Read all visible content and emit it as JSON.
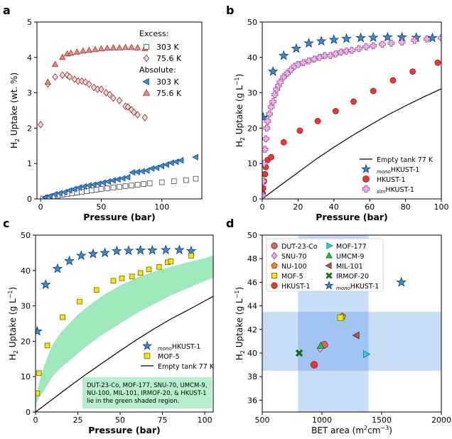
{
  "chart_data": [
    {
      "panel": "a",
      "type": "scatter",
      "xlabel": "Pressure (bar)",
      "ylabel": "H2 Uptake (wt. %)",
      "xlim": [
        -3,
        133
      ],
      "ylim": [
        0,
        5
      ],
      "xticks": [
        0,
        50,
        100
      ],
      "yticks": [
        0,
        1,
        2,
        3,
        4,
        5
      ],
      "legend": {
        "title_excess": "Excess:",
        "title_absolute": "Absolute:",
        "placement": "top-right"
      },
      "series": [
        {
          "name": "303 K",
          "group": "Excess",
          "marker": "square",
          "color": "#ffffff",
          "edge": "#444444",
          "x": [
            2,
            6,
            10,
            14,
            18,
            22,
            26,
            30,
            34,
            38,
            42,
            46,
            50,
            55,
            60,
            65,
            70,
            75,
            80,
            85,
            90,
            100,
            110,
            120,
            128
          ],
          "y": [
            0.01,
            0.04,
            0.07,
            0.09,
            0.12,
            0.14,
            0.16,
            0.18,
            0.2,
            0.22,
            0.24,
            0.26,
            0.28,
            0.3,
            0.32,
            0.34,
            0.36,
            0.38,
            0.4,
            0.42,
            0.44,
            0.47,
            0.5,
            0.53,
            0.57
          ]
        },
        {
          "name": "75.6 K",
          "group": "Excess",
          "marker": "diamond",
          "color": "#f6d6d4",
          "edge": "#7a3030",
          "x": [
            0,
            6,
            12,
            18,
            22,
            24,
            28,
            31,
            34,
            37,
            40,
            44,
            47,
            50,
            54,
            57,
            60,
            65,
            70,
            72,
            75,
            77,
            80,
            86
          ],
          "y": [
            2.1,
            3.25,
            3.45,
            3.5,
            3.5,
            3.45,
            3.38,
            3.33,
            3.33,
            3.3,
            3.24,
            3.15,
            3.1,
            3.1,
            3.0,
            2.95,
            2.85,
            2.78,
            2.62,
            2.6,
            2.52,
            2.45,
            2.38,
            2.3
          ]
        },
        {
          "name": "303 K",
          "group": "Absolute",
          "marker": "triangle-left",
          "color": "#3a8ad6",
          "edge": "#1f4e80",
          "x": [
            4,
            8,
            12,
            16,
            20,
            24,
            28,
            32,
            36,
            40,
            44,
            48,
            52,
            56,
            60,
            64,
            68,
            72,
            76,
            80,
            84,
            88,
            92,
            96,
            100,
            104,
            108,
            112,
            116,
            128
          ],
          "y": [
            0.04,
            0.08,
            0.13,
            0.16,
            0.19,
            0.24,
            0.28,
            0.32,
            0.35,
            0.38,
            0.4,
            0.43,
            0.46,
            0.49,
            0.52,
            0.55,
            0.58,
            0.61,
            0.75,
            0.76,
            0.78,
            0.8,
            0.86,
            0.88,
            0.93,
            0.97,
            1.02,
            1.05,
            1.09,
            1.18
          ]
        },
        {
          "name": "75.6 K",
          "group": "Absolute",
          "marker": "triangle-up",
          "color": "#f1857c",
          "edge": "#8c3a32",
          "x": [
            6,
            12,
            18,
            22,
            25,
            30,
            35,
            40,
            45,
            50,
            55,
            60,
            65,
            70,
            75,
            80,
            86
          ],
          "y": [
            3.3,
            3.8,
            4.0,
            4.1,
            4.12,
            4.15,
            4.18,
            4.2,
            4.22,
            4.24,
            4.26,
            4.27,
            4.27,
            4.28,
            4.28,
            4.27,
            4.25
          ]
        }
      ]
    },
    {
      "panel": "b",
      "type": "scatter",
      "xlabel": "Pressure (bar)",
      "ylabel": "H2 Uptake (g L-1)",
      "xlim": [
        0,
        100
      ],
      "ylim": [
        0,
        50
      ],
      "xticks": [
        0,
        20,
        40,
        60,
        80,
        100
      ],
      "yticks": [
        0,
        10,
        20,
        30,
        40,
        50
      ],
      "legend": {
        "placement": "lower-right"
      },
      "series": [
        {
          "name": "Empty tank 77 K",
          "marker": "line",
          "color": "#000000",
          "x": [
            0,
            10,
            20,
            30,
            40,
            50,
            60,
            70,
            80,
            90,
            100
          ],
          "y": [
            0,
            3.8,
            7.5,
            11.2,
            14.6,
            17.8,
            20.8,
            23.7,
            26.3,
            28.8,
            31.1
          ]
        },
        {
          "name": "monoHKUST-1",
          "name_sub": "mono",
          "name_main": "HKUST-1",
          "marker": "star",
          "color": "#3a8ad6",
          "edge": "#123a60",
          "x": [
            0.5,
            6,
            12,
            19,
            26,
            33,
            40,
            47,
            55,
            62,
            70,
            78,
            86,
            95
          ],
          "y": [
            23,
            36,
            40.5,
            42.5,
            44,
            44.6,
            45,
            45.3,
            45.5,
            45.6,
            45.7,
            45.7,
            45.6,
            45.5
          ]
        },
        {
          "name": "HKUST-1",
          "marker": "circle",
          "color": "#e53a36",
          "edge": "#8a1c1a",
          "x": [
            0.3,
            0.5,
            1,
            1.5,
            2,
            3,
            5,
            12,
            21,
            31,
            41,
            51,
            62,
            73,
            84,
            98
          ],
          "y": [
            1.5,
            3,
            5,
            7,
            9,
            11,
            11.8,
            16,
            19.3,
            22,
            24.8,
            27.5,
            30.5,
            33.5,
            36,
            38.5
          ]
        },
        {
          "name": "simHKUST-1",
          "name_sub": "sim",
          "name_main": "HKUST-1",
          "marker": "plus",
          "color": "#f0b4e8",
          "edge": "#8a3a86",
          "x": [
            0.2,
            0.5,
            1,
            1.5,
            2,
            2.5,
            3,
            4,
            5,
            6,
            7,
            8,
            9,
            10,
            12,
            14,
            16,
            18,
            20,
            23,
            26,
            29,
            32,
            35,
            38,
            41,
            44,
            47,
            50,
            54,
            58,
            62,
            67,
            72,
            78,
            85,
            92,
            100
          ],
          "y": [
            1,
            5,
            10,
            14,
            17,
            20,
            22,
            24,
            26,
            27.5,
            29.5,
            31,
            32,
            33,
            34.5,
            35.5,
            36.5,
            37.5,
            38,
            38.5,
            39,
            39.5,
            40,
            40.5,
            40.5,
            41,
            41.5,
            41.8,
            42,
            42.5,
            43,
            43.3,
            43.7,
            44,
            44.3,
            44.8,
            45.2,
            45.5
          ]
        }
      ]
    },
    {
      "panel": "c",
      "type": "scatter",
      "xlabel": "Pressure (bar)",
      "ylabel": "H2 Uptake (g L-1)",
      "xlim": [
        0,
        105
      ],
      "ylim": [
        0,
        50
      ],
      "xticks": [
        0,
        25,
        50,
        75,
        100
      ],
      "yticks": [
        0,
        10,
        20,
        30,
        40,
        50
      ],
      "legend": {
        "placement": "lower-right"
      },
      "annotation": "DUT-23-Co, MOF-177, SNU-70, UMCM-9, NU-100, MIL-101, IRMOF-20, & HKUST-1 lie in the green shaded region.",
      "band": {
        "color": "#9fe8bb",
        "x": [
          0,
          2,
          5,
          10,
          15,
          20,
          25,
          30,
          35,
          40,
          50,
          60,
          70,
          80,
          90,
          100,
          105
        ],
        "lower": [
          2,
          4,
          6,
          10,
          12.5,
          14.5,
          16.5,
          18.5,
          20.3,
          22,
          25,
          28,
          30.5,
          33,
          35,
          37,
          38
        ],
        "upper": [
          4,
          8,
          13,
          19,
          22.5,
          25,
          27.5,
          29.5,
          31.3,
          33,
          35.8,
          38,
          39.7,
          41,
          42.3,
          43.5,
          44.3
        ]
      },
      "series": [
        {
          "name": "Empty tank 77 K",
          "marker": "line",
          "color": "#000000",
          "x": [
            0,
            10,
            20,
            30,
            40,
            50,
            60,
            70,
            80,
            90,
            100,
            105
          ],
          "y": [
            0,
            3.6,
            7.2,
            10.7,
            14,
            17.3,
            20.5,
            23.5,
            26.3,
            28.8,
            31.4,
            32.7
          ]
        },
        {
          "name": "monoHKUST-1",
          "name_sub": "mono",
          "name_main": "HKUST-1",
          "marker": "star",
          "color": "#3a8ad6",
          "edge": "#123a60",
          "x": [
            1,
            6,
            13,
            20,
            27,
            34,
            41,
            48,
            55,
            62,
            69,
            77,
            85,
            92
          ],
          "y": [
            22.8,
            36,
            40.5,
            42.7,
            44.2,
            44.7,
            45,
            45.5,
            45.6,
            45.7,
            45.7,
            45.8,
            45.8,
            45.5
          ]
        },
        {
          "name": "MOF-5",
          "marker": "square",
          "color": "#f4e418",
          "edge": "#6e6600",
          "x": [
            1,
            2,
            7,
            16,
            26,
            36,
            46,
            51,
            57,
            62,
            67,
            73,
            78,
            80,
            92
          ],
          "y": [
            5.3,
            11,
            18.8,
            26.8,
            31.2,
            34.5,
            37.1,
            37.8,
            38.3,
            39.3,
            40.3,
            41,
            42.3,
            42.6,
            44.2
          ]
        }
      ]
    },
    {
      "panel": "d",
      "type": "scatter",
      "xlabel": "BET area (m2cm-3)",
      "ylabel": "H2 Uptake (g L-1)",
      "xlim": [
        500,
        2000
      ],
      "ylim": [
        35,
        50
      ],
      "xticks": [
        500,
        1000,
        1500,
        2000
      ],
      "yticks": [
        36,
        38,
        40,
        42,
        44,
        46,
        48,
        50
      ],
      "legend": {
        "placement": "top",
        "columns": 2
      },
      "regions": {
        "x_band": [
          800,
          1390
        ],
        "y_band": [
          38.5,
          43.5
        ]
      },
      "series": [
        {
          "name": "DUT-23-Co",
          "marker": "circle",
          "color": "#e0665e",
          "edge": "#6b2622",
          "x": [
            1020
          ],
          "y": [
            40.7
          ]
        },
        {
          "name": "MOF-177",
          "marker": "triangle-right",
          "color": "#2fd3cf",
          "edge": "#117777",
          "x": [
            1370
          ],
          "y": [
            39.9
          ]
        },
        {
          "name": "SNU-70",
          "marker": "diamond",
          "color": "#f3a6ec",
          "edge": "#8a3a86",
          "x": [
            985
          ],
          "y": [
            40.4
          ]
        },
        {
          "name": "UMCM-9",
          "marker": "triangle-up",
          "color": "#2bbf3a",
          "edge": "#126b1c",
          "x": [
            990
          ],
          "y": [
            40.6
          ]
        },
        {
          "name": "NU-100",
          "marker": "pentagon",
          "color": "#f1891e",
          "edge": "#7c4010",
          "x": [
            1170
          ],
          "y": [
            43.1
          ]
        },
        {
          "name": "MIL-101",
          "marker": "triangle-left",
          "color": "#a85a55",
          "edge": "#4f2624",
          "x": [
            1290
          ],
          "y": [
            41.5
          ]
        },
        {
          "name": "MOF-5",
          "marker": "square",
          "color": "#f4e418",
          "edge": "#6e6600",
          "x": [
            1155
          ],
          "y": [
            43
          ]
        },
        {
          "name": "IRMOF-20",
          "marker": "x",
          "color": "#1e6b1e",
          "edge": "#1e6b1e",
          "x": [
            810
          ],
          "y": [
            40
          ]
        },
        {
          "name": "HKUST-1",
          "marker": "circle",
          "color": "#e53a36",
          "edge": "#8a1c1a",
          "x": [
            935
          ],
          "y": [
            39
          ]
        },
        {
          "name": "monoHKUST-1",
          "name_sub": "mono",
          "name_main": "HKUST-1",
          "marker": "star",
          "color": "#3a8ad6",
          "edge": "#123a60",
          "x": [
            1665
          ],
          "y": [
            46
          ]
        }
      ]
    }
  ],
  "panel_labels": [
    "a",
    "b",
    "c",
    "d"
  ],
  "legend_label_units": {
    "gl": "(g L",
    "gl_close": ")",
    "exp": "−1"
  }
}
